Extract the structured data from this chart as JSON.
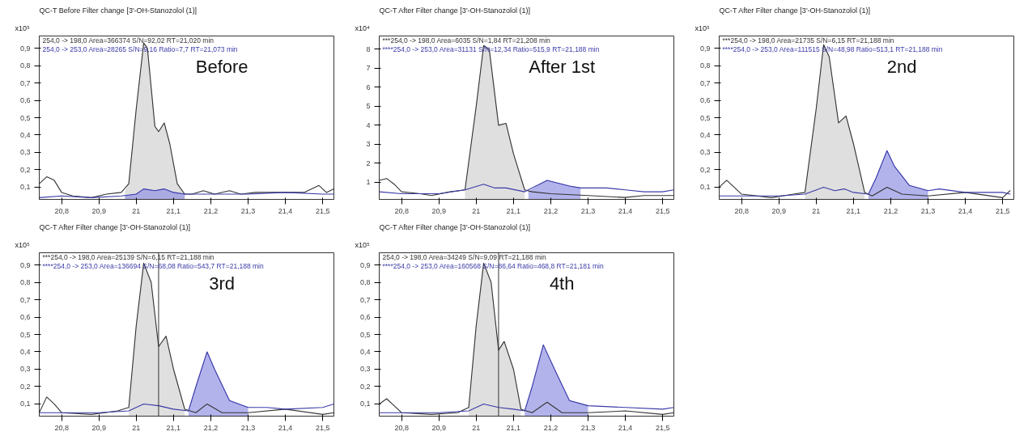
{
  "chart_data": [
    {
      "type": "line",
      "title": "QC-T Before Filter change [3'-OH-Stanozolol (1)]",
      "ylabel": "x10⁵",
      "annotations": [
        "254,0 -> 198,0 Area=366374 S/N=92,02 RT=21,020 min",
        "254,0 -> 253,0 Area=28265 S/N=9,16 Ratio=7,7 RT=21,073 min",
        "Before"
      ],
      "xlim": [
        20.74,
        21.53
      ],
      "xticks": [
        {
          "value": 20.8,
          "label": "20,8"
        },
        {
          "value": 20.9,
          "label": "20,9"
        },
        21,
        {
          "value": 21.1,
          "label": "21,1"
        },
        {
          "value": 21.2,
          "label": "21,2"
        },
        {
          "value": 21.3,
          "label": "21,3"
        },
        {
          "value": 21.4,
          "label": "21,4"
        },
        {
          "value": 21.5,
          "label": "21,5"
        }
      ],
      "ylim": [
        0.03,
        0.97
      ],
      "yticks": [
        {
          "value": 0.1,
          "label": "0,1"
        },
        {
          "value": 0.2,
          "label": "0,2"
        },
        {
          "value": 0.3,
          "label": "0,3"
        },
        {
          "value": 0.4,
          "label": "0,4"
        },
        {
          "value": 0.5,
          "label": "0,5"
        },
        {
          "value": 0.6,
          "label": "0,6"
        },
        {
          "value": 0.7,
          "label": "0,7"
        },
        {
          "value": 0.8,
          "label": "0,8"
        },
        {
          "value": 0.9,
          "label": "0,9"
        }
      ],
      "series": [
        {
          "type": "area",
          "color": "#d4d4d4",
          "x": [
            20.97,
            20.98,
            21.0,
            21.02,
            21.03,
            21.05,
            21.06,
            21.075,
            21.09,
            21.11,
            21.13
          ],
          "values": [
            0.07,
            0.12,
            0.55,
            0.93,
            0.9,
            0.45,
            0.42,
            0.47,
            0.35,
            0.12,
            0.06
          ]
        },
        {
          "type": "area",
          "color": "#9a9ae6",
          "x": [
            20.97,
            21.0,
            21.02,
            21.05,
            21.075,
            21.1,
            21.13
          ],
          "values": [
            0.05,
            0.06,
            0.09,
            0.08,
            0.09,
            0.07,
            0.06
          ]
        },
        {
          "color": "#333333",
          "x": [
            20.74,
            20.76,
            20.78,
            20.8,
            20.83,
            20.88,
            20.92,
            20.96,
            20.98,
            21.0,
            21.02,
            21.03,
            21.05,
            21.06,
            21.075,
            21.09,
            21.11,
            21.13,
            21.15,
            21.18,
            21.21,
            21.25,
            21.28,
            21.32,
            21.38,
            21.45,
            21.49,
            21.51,
            21.53
          ],
          "values": [
            0.12,
            0.16,
            0.14,
            0.07,
            0.05,
            0.04,
            0.06,
            0.07,
            0.12,
            0.55,
            0.93,
            0.9,
            0.45,
            0.42,
            0.47,
            0.35,
            0.12,
            0.06,
            0.06,
            0.08,
            0.06,
            0.08,
            0.06,
            0.07,
            0.07,
            0.07,
            0.11,
            0.07,
            0.09
          ]
        },
        {
          "color": "#3a3aa8",
          "x": [
            20.74,
            20.8,
            20.88,
            20.96,
            21.0,
            21.02,
            21.05,
            21.075,
            21.1,
            21.13,
            21.2,
            21.3,
            21.4,
            21.5,
            21.53
          ],
          "values": [
            0.04,
            0.05,
            0.04,
            0.05,
            0.06,
            0.09,
            0.08,
            0.09,
            0.07,
            0.06,
            0.06,
            0.06,
            0.07,
            0.06,
            0.06
          ]
        }
      ]
    },
    {
      "type": "line",
      "title": "QC-T After Filter change [3'-OH-Stanozolol (1)]",
      "ylabel": "x10⁴",
      "annotations": [
        "***254,0 -> 198,0 Area=6035 S/N=1,84 RT=21,208 min",
        "****254,0 -> 253,0 Area=31131 S/N=12,34 Ratio=515,9 RT=21,188 min",
        "After 1st"
      ],
      "xlim": [
        20.74,
        21.53
      ],
      "xticks": [
        {
          "value": 20.8,
          "label": "20,8"
        },
        {
          "value": 20.9,
          "label": "20,9"
        },
        21,
        {
          "value": 21.1,
          "label": "21,1"
        },
        {
          "value": 21.2,
          "label": "21,2"
        },
        {
          "value": 21.3,
          "label": "21,3"
        },
        {
          "value": 21.4,
          "label": "21,4"
        },
        {
          "value": 21.5,
          "label": "21,5"
        }
      ],
      "ylim": [
        0.1,
        8.7
      ],
      "yticks": [
        1,
        2,
        3,
        4,
        5,
        6,
        7,
        8
      ],
      "series": [
        {
          "type": "area",
          "color": "#d4d4d4",
          "x": [
            20.97,
            21.0,
            21.02,
            21.035,
            21.06,
            21.08,
            21.1,
            21.13
          ],
          "values": [
            0.6,
            5.0,
            8.2,
            8.0,
            4.0,
            4.1,
            2.5,
            0.6
          ]
        },
        {
          "type": "area",
          "color": "#9a9ae6",
          "x": [
            21.14,
            21.19,
            21.25,
            21.28
          ],
          "values": [
            0.5,
            1.1,
            0.8,
            0.7
          ]
        },
        {
          "color": "#333333",
          "x": [
            20.74,
            20.76,
            20.78,
            20.8,
            20.85,
            20.88,
            20.93,
            20.97,
            21.0,
            21.02,
            21.035,
            21.06,
            21.08,
            21.1,
            21.13,
            21.15,
            21.2,
            21.3,
            21.4,
            21.45,
            21.5,
            21.53
          ],
          "values": [
            1.1,
            1.2,
            0.9,
            0.5,
            0.4,
            0.3,
            0.5,
            0.6,
            5.0,
            8.2,
            8.0,
            4.0,
            4.1,
            2.5,
            0.6,
            0.5,
            0.4,
            0.3,
            0.2,
            0.3,
            0.3,
            0.3
          ]
        },
        {
          "color": "#3a3aa8",
          "x": [
            20.74,
            20.8,
            20.9,
            20.97,
            21.02,
            21.05,
            21.08,
            21.13,
            21.19,
            21.25,
            21.28,
            21.35,
            21.4,
            21.45,
            21.5,
            21.53
          ],
          "values": [
            0.5,
            0.4,
            0.4,
            0.6,
            0.9,
            0.7,
            0.7,
            0.5,
            1.1,
            0.8,
            0.7,
            0.7,
            0.6,
            0.5,
            0.5,
            0.6
          ]
        }
      ]
    },
    {
      "type": "line",
      "title": "QC-T After Filter change [3'-OH-Stanozolol (1)]",
      "ylabel": "x10⁵",
      "annotations": [
        "***254,0 -> 198,0 Area=21735 S/N=6,15 RT=21,188 min",
        "****254,0 -> 253,0 Area=111515 S/N=48,98 Ratio=513,1 RT=21,188 min",
        "2nd"
      ],
      "xlim": [
        20.74,
        21.53
      ],
      "xticks": [
        {
          "value": 20.8,
          "label": "20,8"
        },
        {
          "value": 20.9,
          "label": "20,9"
        },
        21,
        {
          "value": 21.1,
          "label": "21,1"
        },
        {
          "value": 21.2,
          "label": "21,2"
        },
        {
          "value": 21.3,
          "label": "21,3"
        },
        {
          "value": 21.4,
          "label": "21,4"
        },
        {
          "value": 21.5,
          "label": "21,5"
        }
      ],
      "ylim": [
        0.03,
        0.97
      ],
      "yticks": [
        {
          "value": 0.1,
          "label": "0,1"
        },
        {
          "value": 0.2,
          "label": "0,2"
        },
        {
          "value": 0.3,
          "label": "0,3"
        },
        {
          "value": 0.4,
          "label": "0,4"
        },
        {
          "value": 0.5,
          "label": "0,5"
        },
        {
          "value": 0.6,
          "label": "0,6"
        },
        {
          "value": 0.7,
          "label": "0,7"
        },
        {
          "value": 0.8,
          "label": "0,8"
        },
        {
          "value": 0.9,
          "label": "0,9"
        }
      ],
      "series": [
        {
          "type": "area",
          "color": "#d4d4d4",
          "x": [
            20.97,
            21.0,
            21.02,
            21.035,
            21.06,
            21.08,
            21.1,
            21.13
          ],
          "values": [
            0.07,
            0.55,
            0.92,
            0.85,
            0.47,
            0.51,
            0.35,
            0.07
          ]
        },
        {
          "type": "area",
          "color": "#9a9ae6",
          "x": [
            21.14,
            21.16,
            21.19,
            21.21,
            21.25,
            21.3
          ],
          "values": [
            0.06,
            0.15,
            0.31,
            0.22,
            0.11,
            0.08
          ]
        },
        {
          "color": "#333333",
          "x": [
            20.74,
            20.76,
            20.78,
            20.8,
            20.88,
            20.94,
            20.97,
            21.0,
            21.02,
            21.035,
            21.06,
            21.08,
            21.1,
            21.13,
            21.15,
            21.19,
            21.23,
            21.3,
            21.4,
            21.5,
            21.52
          ],
          "values": [
            0.1,
            0.14,
            0.1,
            0.06,
            0.04,
            0.06,
            0.07,
            0.55,
            0.92,
            0.85,
            0.47,
            0.51,
            0.35,
            0.07,
            0.05,
            0.1,
            0.06,
            0.05,
            0.07,
            0.04,
            0.08
          ]
        },
        {
          "color": "#3a3aa8",
          "x": [
            20.74,
            20.8,
            20.9,
            20.97,
            21.02,
            21.05,
            21.075,
            21.1,
            21.14,
            21.16,
            21.19,
            21.21,
            21.25,
            21.3,
            21.33,
            21.4,
            21.5,
            21.52
          ],
          "values": [
            0.05,
            0.05,
            0.05,
            0.06,
            0.1,
            0.08,
            0.09,
            0.07,
            0.06,
            0.15,
            0.31,
            0.22,
            0.11,
            0.08,
            0.09,
            0.07,
            0.07,
            0.06
          ]
        }
      ]
    },
    {
      "type": "line",
      "title": "QC-T After Filter change [3'-OH-Stanozolol (1)]",
      "ylabel": "x10⁵",
      "annotations": [
        "***254,0 -> 198,0 Area=25139 S/N=6,15 RT=21,188 min",
        "****254,0 -> 253,0 Area=136694 S/N=68,08 Ratio=543,7 RT=21,188 min",
        "3rd"
      ],
      "xlim": [
        20.74,
        21.53
      ],
      "xticks": [
        {
          "value": 20.8,
          "label": "20,8"
        },
        {
          "value": 20.9,
          "label": "20,9"
        },
        21,
        {
          "value": 21.1,
          "label": "21,1"
        },
        {
          "value": 21.2,
          "label": "21,2"
        },
        {
          "value": 21.3,
          "label": "21,3"
        },
        {
          "value": 21.4,
          "label": "21,4"
        },
        {
          "value": 21.5,
          "label": "21,5"
        }
      ],
      "ylim": [
        0.03,
        0.97
      ],
      "yticks": [
        {
          "value": 0.1,
          "label": "0,1"
        },
        {
          "value": 0.2,
          "label": "0,2"
        },
        {
          "value": 0.3,
          "label": "0,3"
        },
        {
          "value": 0.4,
          "label": "0,4"
        },
        {
          "value": 0.5,
          "label": "0,5"
        },
        {
          "value": 0.6,
          "label": "0,6"
        },
        {
          "value": 0.7,
          "label": "0,7"
        },
        {
          "value": 0.8,
          "label": "0,8"
        },
        {
          "value": 0.9,
          "label": "0,9"
        }
      ],
      "ref_lines": [
        {
          "axis": "x",
          "value": 21.06,
          "color": "#333333"
        }
      ],
      "series": [
        {
          "type": "area",
          "color": "#d4d4d4",
          "x": [
            20.98,
            21.0,
            21.02,
            21.04,
            21.06,
            21.08,
            21.1,
            21.13
          ],
          "values": [
            0.08,
            0.55,
            0.91,
            0.8,
            0.43,
            0.49,
            0.3,
            0.07
          ]
        },
        {
          "type": "area",
          "color": "#9a9ae6",
          "x": [
            21.14,
            21.16,
            21.19,
            21.21,
            21.25,
            21.3
          ],
          "values": [
            0.06,
            0.2,
            0.4,
            0.3,
            0.12,
            0.08
          ]
        },
        {
          "color": "#333333",
          "x": [
            20.74,
            20.76,
            20.78,
            20.8,
            20.88,
            20.95,
            20.98,
            21.0,
            21.02,
            21.04,
            21.06,
            21.08,
            21.1,
            21.13,
            21.16,
            21.19,
            21.23,
            21.3,
            21.4,
            21.5,
            21.53
          ],
          "values": [
            0.05,
            0.14,
            0.1,
            0.05,
            0.04,
            0.06,
            0.08,
            0.55,
            0.91,
            0.8,
            0.43,
            0.49,
            0.3,
            0.07,
            0.05,
            0.1,
            0.05,
            0.05,
            0.07,
            0.04,
            0.05
          ]
        },
        {
          "color": "#3a3aa8",
          "x": [
            20.74,
            20.8,
            20.9,
            20.98,
            21.02,
            21.06,
            21.1,
            21.14,
            21.16,
            21.19,
            21.21,
            21.25,
            21.3,
            21.35,
            21.4,
            21.5,
            21.53
          ],
          "values": [
            0.05,
            0.05,
            0.05,
            0.06,
            0.1,
            0.09,
            0.07,
            0.06,
            0.2,
            0.4,
            0.3,
            0.12,
            0.08,
            0.08,
            0.07,
            0.08,
            0.1
          ]
        }
      ]
    },
    {
      "type": "line",
      "title": "QC-T After Filter change [3'-OH-Stanozolol (1)]",
      "ylabel": "x10⁵",
      "annotations": [
        "254,0 -> 198,0 Area=34249 S/N=9,09 RT=21,188 min",
        "****254,0 -> 253,0 Area=160568 S/N=86,64 Ratio=468,8 RT=21,181 min",
        "4th"
      ],
      "xlim": [
        20.74,
        21.53
      ],
      "xticks": [
        {
          "value": 20.8,
          "label": "20,8"
        },
        {
          "value": 20.9,
          "label": "20,9"
        },
        21,
        {
          "value": 21.1,
          "label": "21,1"
        },
        {
          "value": 21.2,
          "label": "21,2"
        },
        {
          "value": 21.3,
          "label": "21,3"
        },
        {
          "value": 21.4,
          "label": "21,4"
        },
        {
          "value": 21.5,
          "label": "21,5"
        }
      ],
      "ylim": [
        0.03,
        0.97
      ],
      "yticks": [
        {
          "value": 0.1,
          "label": "0,1"
        },
        {
          "value": 0.2,
          "label": "0,2"
        },
        {
          "value": 0.3,
          "label": "0,3"
        },
        {
          "value": 0.4,
          "label": "0,4"
        },
        {
          "value": 0.5,
          "label": "0,5"
        },
        {
          "value": 0.6,
          "label": "0,6"
        },
        {
          "value": 0.7,
          "label": "0,7"
        },
        {
          "value": 0.8,
          "label": "0,8"
        },
        {
          "value": 0.9,
          "label": "0,9"
        }
      ],
      "ref_lines": [
        {
          "axis": "x",
          "value": 21.06,
          "color": "#333333"
        }
      ],
      "series": [
        {
          "type": "area",
          "color": "#d4d4d4",
          "x": [
            20.98,
            21.0,
            21.02,
            21.04,
            21.06,
            21.075,
            21.1,
            21.12
          ],
          "values": [
            0.08,
            0.55,
            0.91,
            0.8,
            0.41,
            0.46,
            0.3,
            0.07
          ]
        },
        {
          "type": "area",
          "color": "#9a9ae6",
          "x": [
            21.13,
            21.15,
            21.18,
            21.21,
            21.25,
            21.3
          ],
          "values": [
            0.06,
            0.2,
            0.44,
            0.3,
            0.12,
            0.09
          ]
        },
        {
          "color": "#333333",
          "x": [
            20.74,
            20.76,
            20.78,
            20.8,
            20.88,
            20.95,
            20.98,
            21.0,
            21.02,
            21.04,
            21.06,
            21.075,
            21.1,
            21.12,
            21.15,
            21.19,
            21.23,
            21.3,
            21.4,
            21.5,
            21.53
          ],
          "values": [
            0.1,
            0.13,
            0.09,
            0.05,
            0.04,
            0.05,
            0.08,
            0.55,
            0.91,
            0.8,
            0.41,
            0.46,
            0.3,
            0.07,
            0.05,
            0.11,
            0.05,
            0.05,
            0.06,
            0.04,
            0.05
          ]
        },
        {
          "color": "#3a3aa8",
          "x": [
            20.74,
            20.8,
            20.9,
            20.98,
            21.02,
            21.06,
            21.1,
            21.13,
            21.15,
            21.18,
            21.21,
            21.25,
            21.3,
            21.4,
            21.5,
            21.53
          ],
          "values": [
            0.05,
            0.05,
            0.05,
            0.06,
            0.1,
            0.08,
            0.07,
            0.06,
            0.2,
            0.44,
            0.3,
            0.12,
            0.09,
            0.08,
            0.07,
            0.08
          ]
        }
      ]
    }
  ]
}
